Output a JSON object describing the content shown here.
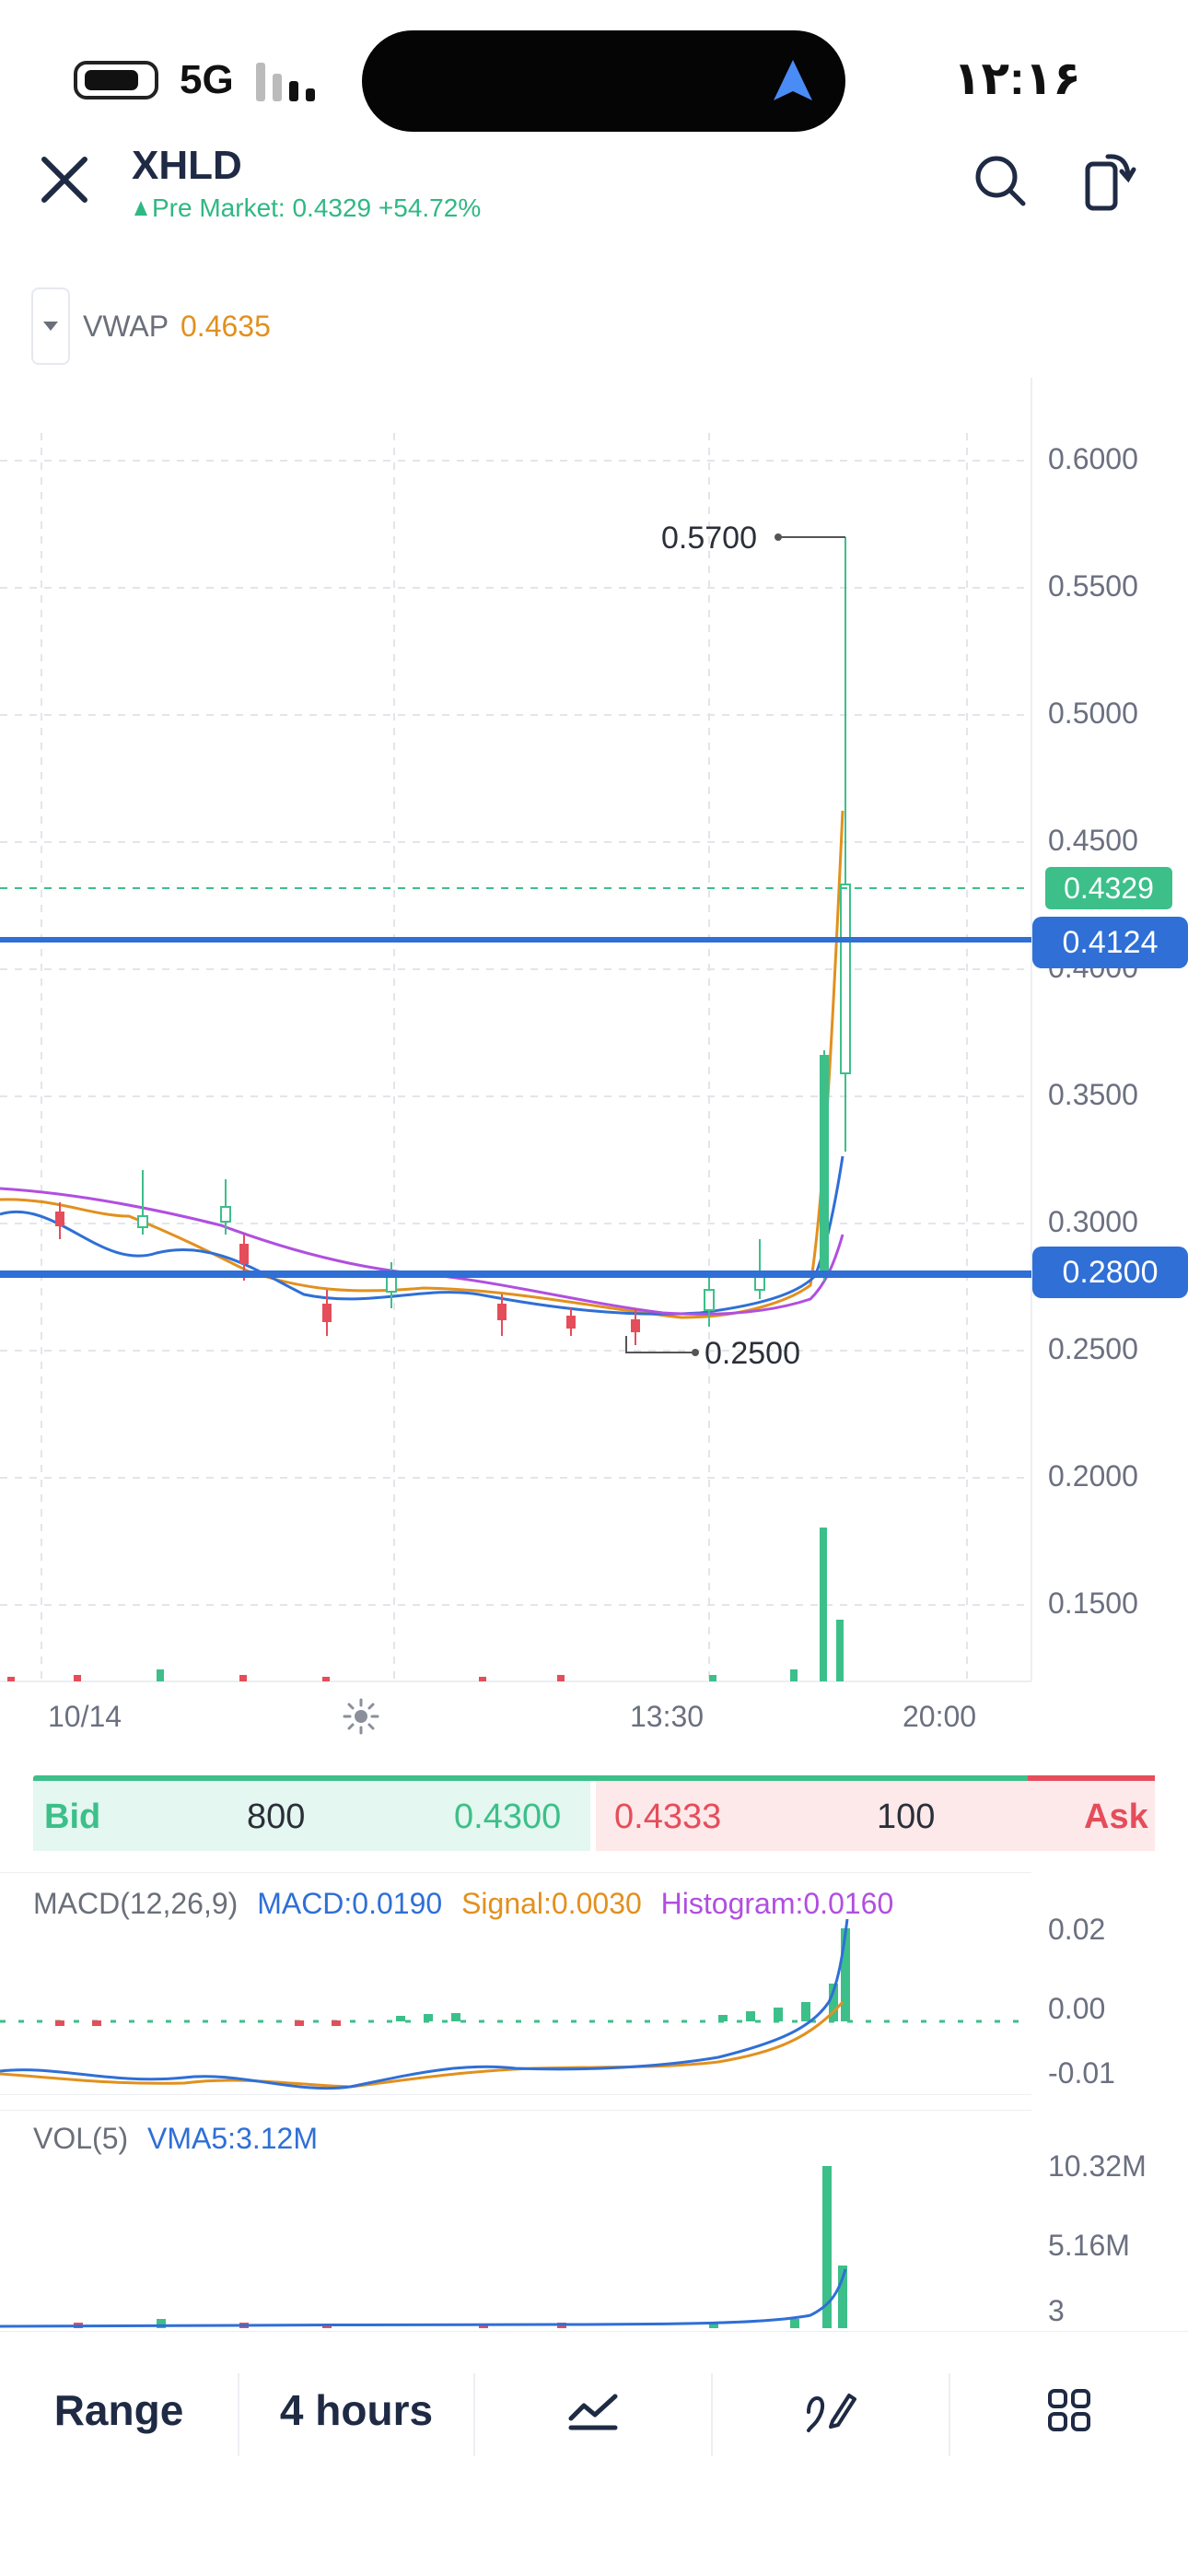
{
  "status_bar": {
    "network": "5G",
    "time": "۱۲:۱۶"
  },
  "header": {
    "symbol": "XHLD",
    "premarket_text": "Pre Market: 0.4329 +54.72%",
    "icons": [
      "close-icon",
      "search-icon",
      "rotate-screen-icon"
    ]
  },
  "indicator": {
    "name": "VWAP",
    "value": "0.4635"
  },
  "price_axis": [
    "0.6000",
    "0.5500",
    "0.5000",
    "0.4500",
    "0.4000",
    "0.3500",
    "0.3000",
    "0.2500",
    "0.2000",
    "0.1500"
  ],
  "price_tags": {
    "current": "0.4329",
    "line_upper": "0.4124",
    "line_lower": "0.2800"
  },
  "annotations": {
    "high": "0.5700",
    "low": "0.2500"
  },
  "time_axis": {
    "left": "10/14",
    "middle": "13:30",
    "right": "20:00"
  },
  "bid_ask": {
    "bid_label": "Bid",
    "bid_size": "800",
    "bid_price": "0.4300",
    "ask_price": "0.4333",
    "ask_size": "100",
    "ask_label": "Ask"
  },
  "macd": {
    "title": "MACD(12,26,9)",
    "macd": "MACD:0.0190",
    "signal": "Signal:0.0030",
    "histogram": "Histogram:0.0160",
    "axis": [
      "0.02",
      "0.00",
      "-0.01"
    ]
  },
  "volume": {
    "title": "VOL(5)",
    "vma": "VMA5:3.12M",
    "axis": [
      "10.32M",
      "5.16M",
      "3"
    ]
  },
  "tabbar": {
    "range": "Range",
    "interval": "4 hours"
  },
  "colors": {
    "up": "#3dbf8a",
    "down": "#e54d5a",
    "line": "#2f6fd6",
    "vwap": "#e2901e",
    "purple": "#b04fe0",
    "blue_line": "#2f6fd6"
  },
  "chart_data": {
    "type": "candlestick",
    "ylim": [
      0.12,
      0.62
    ],
    "high": 0.57,
    "low": 0.25,
    "last": 0.4329,
    "horizontal_lines": [
      0.4124,
      0.28
    ]
  }
}
